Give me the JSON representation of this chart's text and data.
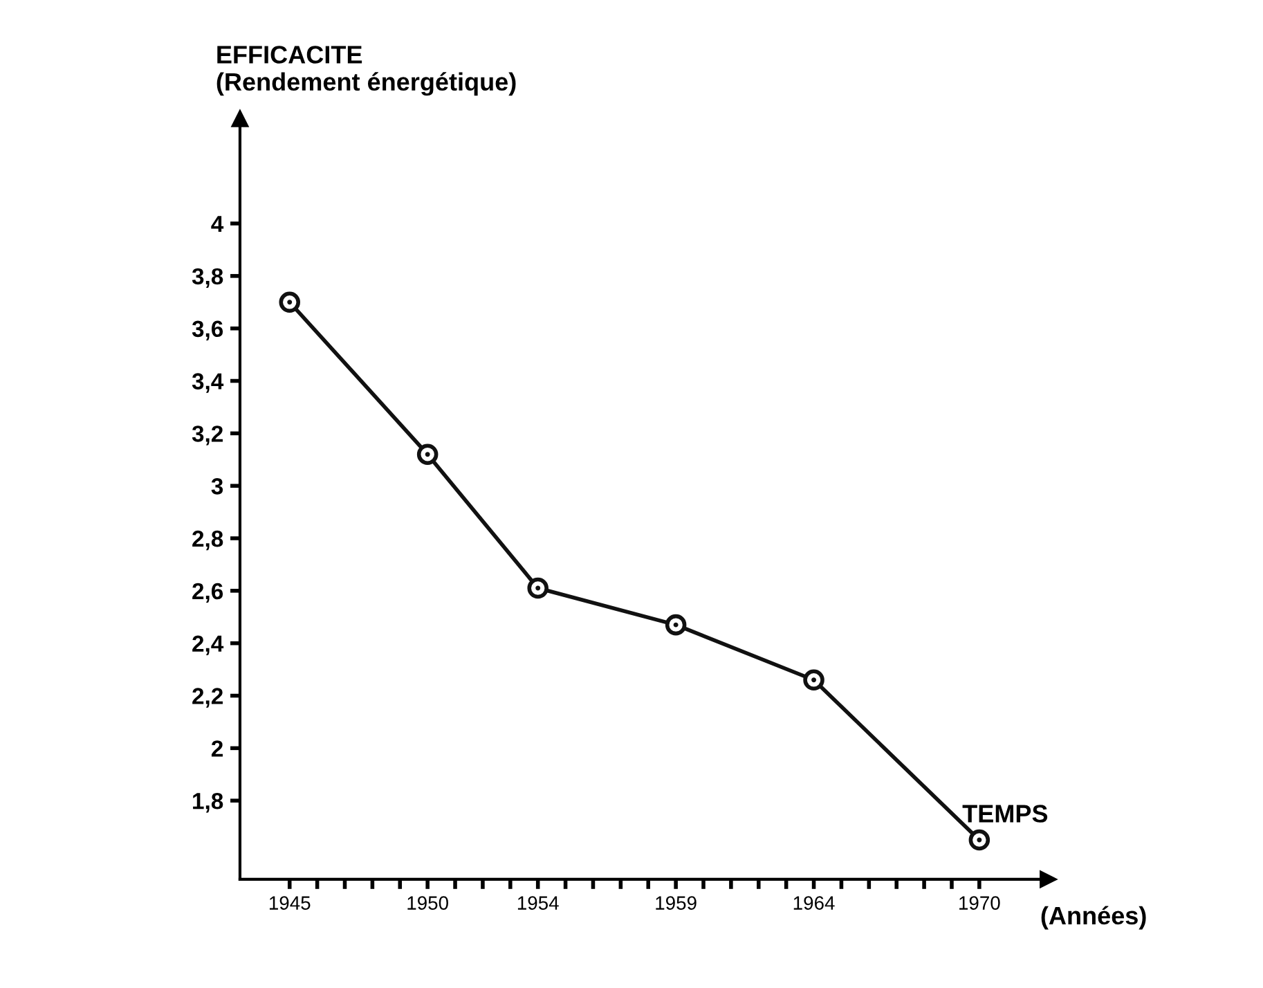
{
  "chart_data": {
    "type": "line",
    "xlabel": "TEMPS",
    "ylabel": "EFFICACITE\n(Rendement énergétique)",
    "annotations": [
      "(Années)"
    ],
    "x": [
      1945,
      1950,
      1954,
      1959,
      1964,
      1970
    ],
    "series": [
      {
        "color": "#111111",
        "values": [
          3.7,
          3.12,
          2.61,
          2.47,
          2.26,
          1.65
        ]
      }
    ],
    "marker": "circle",
    "line_style": "solid",
    "grid": false,
    "legend": false,
    "xlim": [
      1943.2,
      1972.5
    ],
    "ylim": [
      1.5,
      4.4
    ],
    "xticks": [
      1945,
      {
        "value": 1946,
        "label": null
      },
      {
        "value": 1947,
        "label": null
      },
      {
        "value": 1948,
        "label": null
      },
      {
        "value": 1949,
        "label": null
      },
      1950,
      {
        "value": 1951,
        "label": null
      },
      {
        "value": 1952,
        "label": null
      },
      {
        "value": 1953,
        "label": null
      },
      1954,
      {
        "value": 1955,
        "label": null
      },
      {
        "value": 1956,
        "label": null
      },
      {
        "value": 1957,
        "label": null
      },
      {
        "value": 1958,
        "label": null
      },
      1959,
      {
        "value": 1960,
        "label": null
      },
      {
        "value": 1961,
        "label": null
      },
      {
        "value": 1962,
        "label": null
      },
      {
        "value": 1963,
        "label": null
      },
      1964,
      {
        "value": 1965,
        "label": null
      },
      {
        "value": 1966,
        "label": null
      },
      {
        "value": 1967,
        "label": null
      },
      {
        "value": 1968,
        "label": null
      },
      {
        "value": 1969,
        "label": null
      },
      1970
    ],
    "yticks": [
      {
        "value": 1.8,
        "label": "1,8"
      },
      2,
      {
        "value": 2.2,
        "label": "2,2"
      },
      {
        "value": 2.4,
        "label": "2,4"
      },
      {
        "value": 2.6,
        "label": "2,6"
      },
      {
        "value": 2.8,
        "label": "2,8"
      },
      3,
      {
        "value": 3.2,
        "label": "3,2"
      },
      {
        "value": 3.4,
        "label": "3,4"
      },
      {
        "value": 3.6,
        "label": "3,6"
      },
      {
        "value": 3.8,
        "label": "3,8"
      },
      4
    ]
  }
}
